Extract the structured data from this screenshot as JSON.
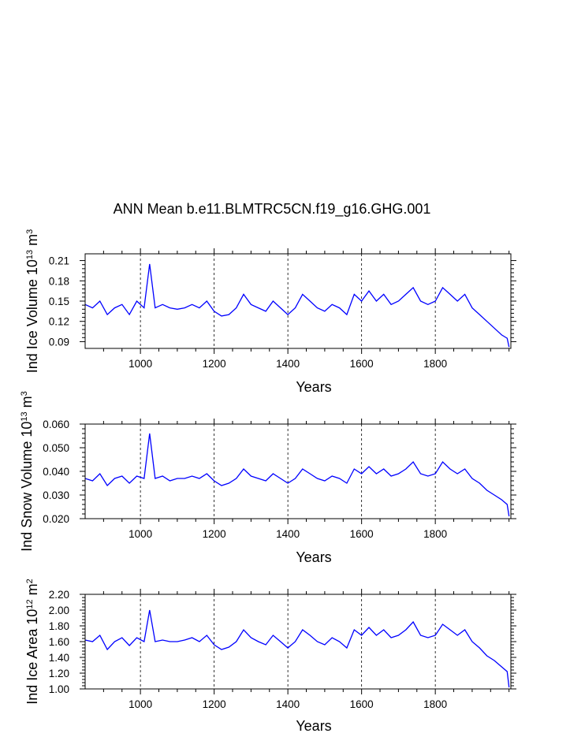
{
  "title": "ANN Mean b.e11.BLMTRC5CN.f19_g16.GHG.001",
  "chart_data": [
    {
      "type": "line",
      "xlabel": "Years",
      "ylabel": {
        "pre": "Ind Ice Volume 10",
        "exp": "13",
        "mid": " m",
        "unit_exp": "3"
      },
      "xlim": [
        850,
        2005
      ],
      "ylim": [
        0.08,
        0.22
      ],
      "xticks": [
        1000,
        1200,
        1400,
        1600,
        1800
      ],
      "xtick_labels": [
        "1000",
        "1200",
        "1400",
        "1600",
        "1800"
      ],
      "yticks": [
        0.09,
        0.12,
        0.15,
        0.18,
        0.21
      ],
      "ytick_labels": [
        "0.09",
        "0.12",
        "0.15",
        "0.18",
        "0.21"
      ],
      "grid": "vertical dashed at x major ticks",
      "series": [
        {
          "color": "#0000ff",
          "x": [
            850,
            870,
            890,
            910,
            930,
            950,
            970,
            990,
            1010,
            1025,
            1040,
            1060,
            1080,
            1100,
            1120,
            1140,
            1160,
            1180,
            1200,
            1220,
            1240,
            1260,
            1280,
            1300,
            1320,
            1340,
            1360,
            1380,
            1400,
            1420,
            1440,
            1460,
            1480,
            1500,
            1520,
            1540,
            1560,
            1580,
            1600,
            1620,
            1640,
            1660,
            1680,
            1700,
            1720,
            1740,
            1760,
            1780,
            1800,
            1820,
            1840,
            1860,
            1880,
            1900,
            1920,
            1940,
            1960,
            1980,
            1995,
            2000
          ],
          "y": [
            0.145,
            0.14,
            0.15,
            0.13,
            0.14,
            0.145,
            0.13,
            0.15,
            0.14,
            0.205,
            0.14,
            0.145,
            0.14,
            0.138,
            0.14,
            0.145,
            0.14,
            0.15,
            0.135,
            0.128,
            0.13,
            0.14,
            0.16,
            0.145,
            0.14,
            0.135,
            0.15,
            0.14,
            0.13,
            0.14,
            0.16,
            0.15,
            0.14,
            0.135,
            0.145,
            0.14,
            0.13,
            0.16,
            0.15,
            0.165,
            0.15,
            0.16,
            0.145,
            0.15,
            0.16,
            0.17,
            0.15,
            0.145,
            0.15,
            0.17,
            0.16,
            0.15,
            0.16,
            0.14,
            0.13,
            0.12,
            0.11,
            0.1,
            0.095,
            0.082
          ]
        }
      ]
    },
    {
      "type": "line",
      "xlabel": "Years",
      "ylabel": {
        "pre": "Ind Snow Volume 10",
        "exp": "13",
        "mid": " m",
        "unit_exp": "3"
      },
      "xlim": [
        850,
        2005
      ],
      "ylim": [
        0.02,
        0.06
      ],
      "xticks": [
        1000,
        1200,
        1400,
        1600,
        1800
      ],
      "xtick_labels": [
        "1000",
        "1200",
        "1400",
        "1600",
        "1800"
      ],
      "yticks": [
        0.02,
        0.03,
        0.04,
        0.05,
        0.06
      ],
      "ytick_labels": [
        "0.020",
        "0.030",
        "0.040",
        "0.050",
        "0.060"
      ],
      "grid": "vertical dashed at x major ticks",
      "series": [
        {
          "color": "#0000ff",
          "x": [
            850,
            870,
            890,
            910,
            930,
            950,
            970,
            990,
            1010,
            1025,
            1040,
            1060,
            1080,
            1100,
            1120,
            1140,
            1160,
            1180,
            1200,
            1220,
            1240,
            1260,
            1280,
            1300,
            1320,
            1340,
            1360,
            1380,
            1400,
            1420,
            1440,
            1460,
            1480,
            1500,
            1520,
            1540,
            1560,
            1580,
            1600,
            1620,
            1640,
            1660,
            1680,
            1700,
            1720,
            1740,
            1760,
            1780,
            1800,
            1820,
            1840,
            1860,
            1880,
            1900,
            1920,
            1940,
            1960,
            1980,
            1995,
            2000
          ],
          "y": [
            0.037,
            0.036,
            0.039,
            0.034,
            0.037,
            0.038,
            0.035,
            0.038,
            0.037,
            0.056,
            0.037,
            0.038,
            0.036,
            0.037,
            0.037,
            0.038,
            0.037,
            0.039,
            0.036,
            0.034,
            0.035,
            0.037,
            0.041,
            0.038,
            0.037,
            0.036,
            0.039,
            0.037,
            0.035,
            0.037,
            0.041,
            0.039,
            0.037,
            0.036,
            0.038,
            0.037,
            0.035,
            0.041,
            0.039,
            0.042,
            0.039,
            0.041,
            0.038,
            0.039,
            0.041,
            0.044,
            0.039,
            0.038,
            0.039,
            0.044,
            0.041,
            0.039,
            0.041,
            0.037,
            0.035,
            0.032,
            0.03,
            0.028,
            0.026,
            0.021
          ]
        }
      ]
    },
    {
      "type": "line",
      "xlabel": "Years",
      "ylabel": {
        "pre": "Ind Ice Area 10",
        "exp": "12",
        "mid": " m",
        "unit_exp": "2"
      },
      "xlim": [
        850,
        2005
      ],
      "ylim": [
        1.0,
        2.2
      ],
      "xticks": [
        1000,
        1200,
        1400,
        1600,
        1800
      ],
      "xtick_labels": [
        "1000",
        "1200",
        "1400",
        "1600",
        "1800"
      ],
      "yticks": [
        1.0,
        1.2,
        1.4,
        1.6,
        1.8,
        2.0,
        2.2
      ],
      "ytick_labels": [
        "1.00",
        "1.20",
        "1.40",
        "1.60",
        "1.80",
        "2.00",
        "2.20"
      ],
      "grid": "vertical dashed at x major ticks",
      "series": [
        {
          "color": "#0000ff",
          "x": [
            850,
            870,
            890,
            910,
            930,
            950,
            970,
            990,
            1010,
            1025,
            1040,
            1060,
            1080,
            1100,
            1120,
            1140,
            1160,
            1180,
            1200,
            1220,
            1240,
            1260,
            1280,
            1300,
            1320,
            1340,
            1360,
            1380,
            1400,
            1420,
            1440,
            1460,
            1480,
            1500,
            1520,
            1540,
            1560,
            1580,
            1600,
            1620,
            1640,
            1660,
            1680,
            1700,
            1720,
            1740,
            1760,
            1780,
            1800,
            1820,
            1840,
            1860,
            1880,
            1900,
            1920,
            1940,
            1960,
            1980,
            1995,
            2000
          ],
          "y": [
            1.62,
            1.6,
            1.68,
            1.5,
            1.6,
            1.65,
            1.55,
            1.65,
            1.6,
            2.0,
            1.6,
            1.62,
            1.6,
            1.6,
            1.62,
            1.65,
            1.6,
            1.68,
            1.56,
            1.5,
            1.53,
            1.6,
            1.75,
            1.65,
            1.6,
            1.56,
            1.68,
            1.6,
            1.52,
            1.6,
            1.75,
            1.68,
            1.6,
            1.56,
            1.65,
            1.6,
            1.52,
            1.75,
            1.68,
            1.78,
            1.68,
            1.75,
            1.65,
            1.68,
            1.75,
            1.85,
            1.68,
            1.65,
            1.68,
            1.82,
            1.75,
            1.68,
            1.75,
            1.6,
            1.52,
            1.42,
            1.36,
            1.28,
            1.22,
            1.02
          ]
        }
      ]
    }
  ]
}
